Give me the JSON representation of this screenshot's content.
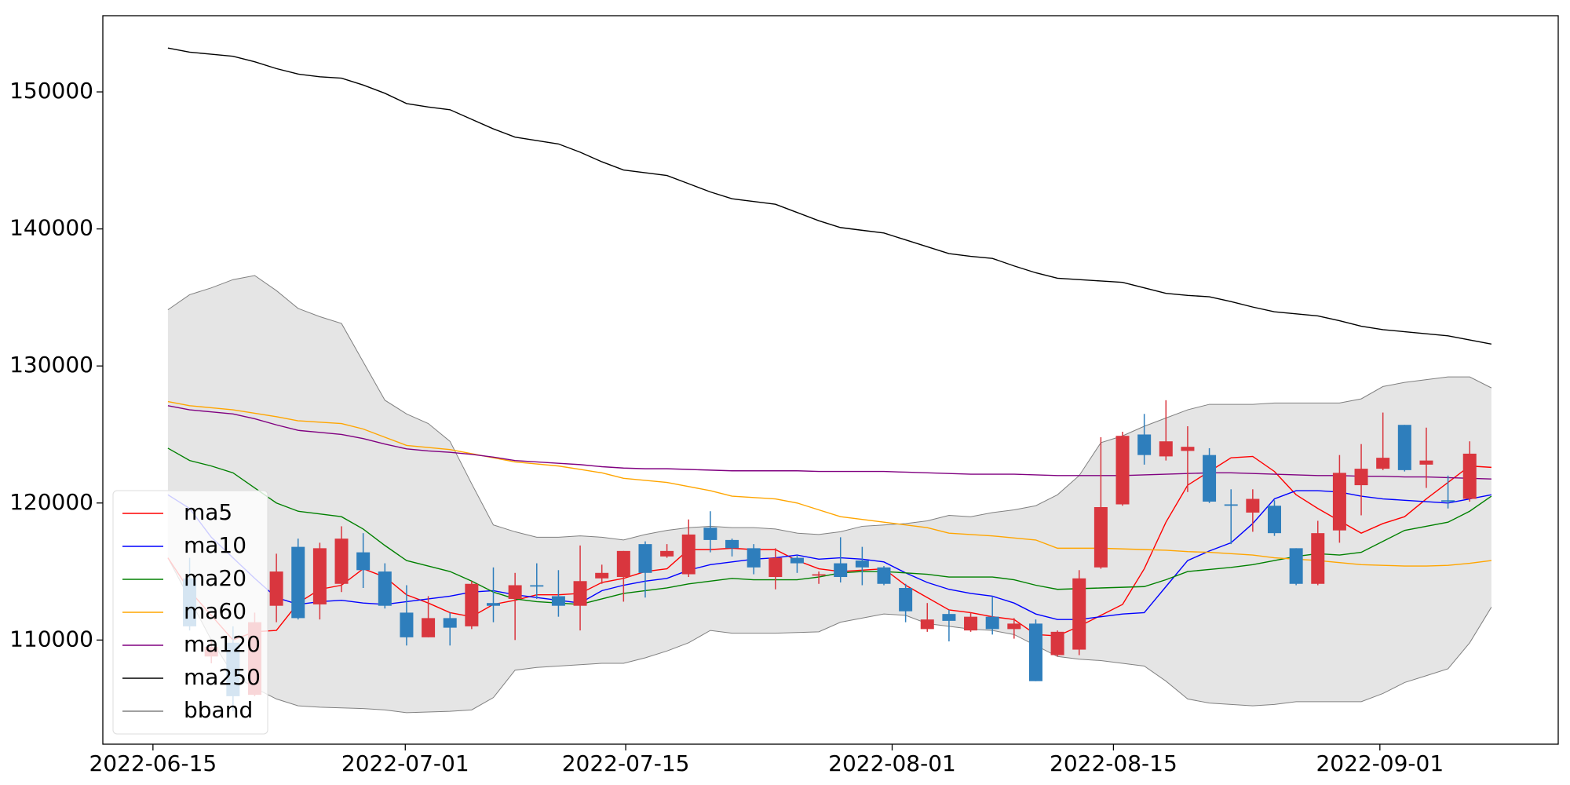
{
  "chart_data": {
    "type": "candlestick",
    "x": [
      0,
      1,
      2,
      3,
      4,
      5,
      6,
      7,
      8,
      9,
      10,
      11,
      12,
      13,
      14,
      15,
      16,
      17,
      18,
      19,
      20,
      21,
      22,
      23,
      24,
      25,
      26,
      27,
      28,
      29,
      30,
      31,
      32,
      33,
      34,
      35,
      36,
      37,
      38,
      39,
      40,
      41,
      42,
      43,
      44,
      45,
      46,
      47,
      48,
      49,
      50,
      51,
      52,
      53,
      54,
      55,
      56,
      57,
      58,
      59,
      60,
      61
    ],
    "open": [
      null,
      114500,
      108800,
      109800,
      106000,
      112500,
      116800,
      112600,
      114100,
      116400,
      115000,
      112000,
      110200,
      111600,
      111000,
      112700,
      113000,
      114000,
      113200,
      112500,
      114500,
      114600,
      117000,
      116100,
      114800,
      118200,
      117300,
      116700,
      114600,
      116000,
      114700,
      115600,
      115800,
      115300,
      113800,
      110800,
      111900,
      110700,
      111700,
      110800,
      111200,
      108900,
      109300,
      115300,
      119900,
      125000,
      123400,
      123800,
      123500,
      119900,
      119300,
      119800,
      116700,
      114100,
      118000,
      121300,
      122500,
      125700,
      122800,
      120200,
      120300,
      null
    ],
    "high": [
      null,
      116000,
      110000,
      111000,
      112000,
      116300,
      117400,
      117100,
      118300,
      117800,
      115600,
      114000,
      113200,
      112000,
      114300,
      115300,
      114900,
      115600,
      115100,
      116900,
      115500,
      116500,
      117200,
      117000,
      118800,
      119400,
      117400,
      117000,
      116700,
      116200,
      115000,
      117500,
      116800,
      115400,
      114100,
      112700,
      112200,
      112000,
      113200,
      111600,
      111500,
      110700,
      115100,
      124800,
      125200,
      126500,
      127500,
      125600,
      124000,
      121000,
      121000,
      120200,
      116700,
      118700,
      123500,
      124300,
      126600,
      125700,
      125500,
      122000,
      124500,
      null
    ],
    "low": [
      null,
      110700,
      108300,
      104800,
      105900,
      111300,
      111500,
      111500,
      113500,
      113800,
      112300,
      109600,
      110200,
      109600,
      110800,
      111300,
      110000,
      113000,
      111700,
      110700,
      114100,
      112800,
      113100,
      116000,
      114600,
      116400,
      116100,
      114800,
      113700,
      114900,
      114100,
      114200,
      114000,
      114000,
      111300,
      110600,
      109900,
      110600,
      110400,
      110100,
      107000,
      108800,
      108900,
      115200,
      119800,
      122800,
      123100,
      120800,
      120000,
      117000,
      117900,
      117600,
      114000,
      114000,
      117100,
      119100,
      122400,
      122300,
      121100,
      119600,
      120100,
      null
    ],
    "close": [
      null,
      111000,
      109500,
      105900,
      111300,
      115000,
      111600,
      116700,
      117400,
      115100,
      112500,
      110200,
      111600,
      110900,
      114100,
      112500,
      114000,
      113900,
      112500,
      114300,
      114900,
      116500,
      114900,
      116500,
      117700,
      117300,
      116700,
      115300,
      116000,
      115600,
      114800,
      114600,
      115300,
      114100,
      112100,
      111500,
      111400,
      111700,
      110800,
      111200,
      107000,
      110600,
      114500,
      119700,
      124900,
      123500,
      124500,
      124100,
      120100,
      119800,
      120300,
      117800,
      114100,
      117800,
      122200,
      122500,
      123300,
      122400,
      123100,
      120100,
      123600,
      null
    ],
    "up_color": "#d9363e",
    "down_color": "#2e7ebc",
    "series": [
      {
        "name": "ma5",
        "color": "#ff0000",
        "values": [
          116000,
          113600,
          111800,
          110000,
          110600,
          110700,
          112700,
          113700,
          114000,
          115200,
          114600,
          113300,
          112700,
          112000,
          111700,
          112600,
          112900,
          113300,
          113300,
          113400,
          114200,
          114500,
          115000,
          115200,
          116600,
          116600,
          116700,
          116600,
          116600,
          115800,
          115200,
          115000,
          115100,
          115200,
          114000,
          113100,
          112200,
          112000,
          111700,
          111500,
          110400,
          110300,
          111000,
          111800,
          112600,
          115200,
          118600,
          121300,
          122300,
          123300,
          123400,
          122300,
          120600,
          119600,
          118700,
          117800,
          118500,
          119000,
          120300,
          121500,
          122700,
          122600
        ]
      },
      {
        "name": "ma10",
        "color": "#0000ff",
        "values": [
          120600,
          119600,
          117500,
          116000,
          114500,
          113100,
          112600,
          112800,
          112900,
          112700,
          112600,
          112800,
          113000,
          113200,
          113500,
          113600,
          113300,
          113100,
          112900,
          112700,
          113600,
          114000,
          114300,
          114500,
          115100,
          115500,
          115700,
          115900,
          116000,
          116200,
          115900,
          116000,
          115900,
          115700,
          114900,
          114200,
          113700,
          113400,
          113200,
          112700,
          111900,
          111500,
          111500,
          111700,
          111900,
          112000,
          113900,
          115800,
          116500,
          117100,
          118500,
          120300,
          120900,
          120900,
          120800,
          120500,
          120300,
          120200,
          120100,
          120000,
          120300,
          120600
        ]
      },
      {
        "name": "ma20",
        "color": "#008000",
        "values": [
          124000,
          123100,
          122700,
          122200,
          121100,
          120000,
          119400,
          119200,
          119000,
          118100,
          116900,
          115800,
          115400,
          115000,
          114300,
          113500,
          113000,
          112800,
          112700,
          112600,
          113000,
          113400,
          113600,
          113800,
          114100,
          114300,
          114500,
          114400,
          114400,
          114400,
          114600,
          114900,
          115000,
          115000,
          114900,
          114800,
          114600,
          114600,
          114600,
          114400,
          114000,
          113700,
          113750,
          113800,
          113850,
          113900,
          114400,
          115000,
          115150,
          115300,
          115500,
          115800,
          116100,
          116300,
          116200,
          116400,
          117200,
          118000,
          118300,
          118600,
          119400,
          120500
        ]
      },
      {
        "name": "ma60",
        "color": "#ffa500",
        "values": [
          127400,
          127100,
          126950,
          126800,
          126550,
          126300,
          126000,
          125900,
          125800,
          125400,
          124800,
          124200,
          124050,
          123900,
          123600,
          123300,
          123000,
          122850,
          122700,
          122450,
          122200,
          121800,
          121650,
          121500,
          121200,
          120900,
          120500,
          120400,
          120300,
          120000,
          119500,
          119000,
          118800,
          118600,
          118400,
          118200,
          117800,
          117700,
          117600,
          117450,
          117300,
          116700,
          116700,
          116700,
          116650,
          116600,
          116550,
          116450,
          116400,
          116300,
          116200,
          116000,
          115900,
          115800,
          115650,
          115500,
          115450,
          115400,
          115400,
          115450,
          115600,
          115800
        ]
      },
      {
        "name": "ma120",
        "color": "#800080",
        "values": [
          127100,
          126800,
          126650,
          126500,
          126150,
          125700,
          125300,
          125150,
          125000,
          124700,
          124300,
          123950,
          123800,
          123700,
          123550,
          123350,
          123100,
          123000,
          122900,
          122800,
          122650,
          122550,
          122500,
          122500,
          122450,
          122400,
          122350,
          122350,
          122350,
          122350,
          122300,
          122300,
          122300,
          122300,
          122250,
          122200,
          122150,
          122100,
          122100,
          122100,
          122050,
          122000,
          122000,
          122000,
          122000,
          122050,
          122100,
          122150,
          122200,
          122200,
          122150,
          122100,
          122050,
          122000,
          122000,
          121950,
          121950,
          121900,
          121900,
          121850,
          121800,
          121750
        ]
      },
      {
        "name": "ma250",
        "color": "#000000",
        "values": [
          153200,
          152900,
          152750,
          152600,
          152200,
          151700,
          151300,
          151100,
          151000,
          150500,
          149900,
          149150,
          148900,
          148700,
          148000,
          147300,
          146700,
          146450,
          146200,
          145600,
          144900,
          144300,
          144100,
          143900,
          143300,
          142700,
          142200,
          142000,
          141800,
          141200,
          140600,
          140100,
          139900,
          139700,
          139200,
          138700,
          138200,
          138000,
          137850,
          137300,
          136800,
          136400,
          136300,
          136200,
          136100,
          135700,
          135300,
          135150,
          135050,
          134700,
          134300,
          133950,
          133800,
          133650,
          133300,
          132900,
          132650,
          132500,
          132350,
          132200,
          131900,
          131600
        ]
      }
    ],
    "bands": [
      {
        "name": "bband",
        "color": "#808080",
        "fill": "#e5e5e5",
        "upper": [
          134100,
          135200,
          135700,
          136300,
          136600,
          135500,
          134200,
          133600,
          133100,
          130300,
          127500,
          126500,
          125800,
          124500,
          121400,
          118400,
          117900,
          117500,
          117500,
          117600,
          117500,
          117300,
          117700,
          118000,
          118200,
          118300,
          118200,
          118200,
          118100,
          117800,
          117700,
          117900,
          118300,
          118400,
          118500,
          118700,
          119100,
          119000,
          119300,
          119500,
          119800,
          120600,
          122000,
          124400,
          124900,
          125600,
          126200,
          126800,
          127200,
          127200,
          127200,
          127300,
          127300,
          127300,
          127300,
          127600,
          128500,
          128800,
          129000,
          129200,
          129200,
          128400
        ],
        "lower": [
          116000,
          113000,
          110000,
          107500,
          106500,
          105700,
          105200,
          105100,
          105050,
          105000,
          104900,
          104700,
          104750,
          104800,
          104900,
          105800,
          107800,
          108000,
          108100,
          108200,
          108300,
          108300,
          108700,
          109200,
          109800,
          110700,
          110500,
          110500,
          110500,
          110550,
          110600,
          111300,
          111600,
          111900,
          111800,
          111200,
          111000,
          110800,
          110700,
          110400,
          109600,
          108800,
          108600,
          108500,
          108300,
          108100,
          107000,
          105700,
          105400,
          105300,
          105200,
          105300,
          105500,
          105500,
          105500,
          105500,
          106100,
          106900,
          107400,
          107900,
          109800,
          112400
        ]
      }
    ],
    "xlim": [
      -3.0,
      64.08
    ],
    "xticks": [
      {
        "value": -0.69,
        "label": "2022-06-15"
      },
      {
        "value": 10.94,
        "label": "2022-07-01"
      },
      {
        "value": 21.1,
        "label": "2022-07-15"
      },
      {
        "value": 33.38,
        "label": "2022-08-01"
      },
      {
        "value": 43.58,
        "label": "2022-08-15"
      },
      {
        "value": 55.86,
        "label": "2022-09-01"
      }
    ],
    "ylim": [
      102400,
      155560
    ],
    "yticks": [
      110000,
      120000,
      130000,
      140000,
      150000
    ],
    "legend": "lower left"
  }
}
